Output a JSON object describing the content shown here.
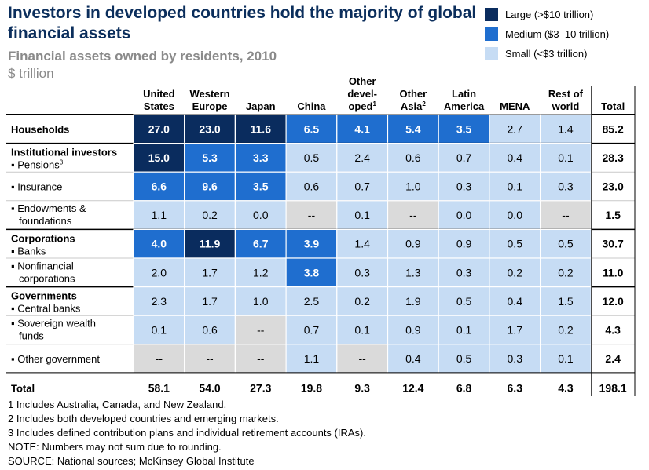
{
  "title": "Investors in developed countries hold the majority of global financial assets",
  "subtitle": "Financial assets owned by residents, 2010",
  "unit": "$ trillion",
  "legend": [
    {
      "label": "Large (>$10 trillion)",
      "color": "#0a2c5e"
    },
    {
      "label": "Medium ($3–10 trillion)",
      "color": "#1f6ecf"
    },
    {
      "label": "Small (<$3 trillion)",
      "color": "#c6dcf4"
    }
  ],
  "colors": {
    "large": "#0a2c5e",
    "medium": "#1f6ecf",
    "small": "#c6dcf4",
    "na": "#dadada"
  },
  "chart_data": {
    "type": "table",
    "columns": [
      {
        "lines": [
          "United",
          "States"
        ],
        "sup": ""
      },
      {
        "lines": [
          "Western",
          "Europe"
        ],
        "sup": ""
      },
      {
        "lines": [
          "Japan"
        ],
        "sup": ""
      },
      {
        "lines": [
          "China"
        ],
        "sup": ""
      },
      {
        "lines": [
          "Other",
          "devel-",
          "oped"
        ],
        "sup": "1"
      },
      {
        "lines": [
          "Other",
          "Asia"
        ],
        "sup": "2"
      },
      {
        "lines": [
          "Latin",
          "America"
        ],
        "sup": ""
      },
      {
        "lines": [
          "MENA"
        ],
        "sup": ""
      },
      {
        "lines": [
          "Rest of",
          "world"
        ],
        "sup": ""
      }
    ],
    "total_header": "Total",
    "groups": [
      {
        "label": "Households",
        "rows": [
          {
            "label": "",
            "values": [
              "27.0",
              "23.0",
              "11.6",
              "6.5",
              "4.1",
              "5.4",
              "3.5",
              "2.7",
              "1.4"
            ],
            "total": "85.2"
          }
        ]
      },
      {
        "label": "Institutional investors",
        "rows": [
          {
            "label": "Pensions",
            "sup": "3",
            "values": [
              "15.0",
              "5.3",
              "3.3",
              "0.5",
              "2.4",
              "0.6",
              "0.7",
              "0.4",
              "0.1"
            ],
            "total": "28.3"
          },
          {
            "label": "Insurance",
            "values": [
              "6.6",
              "9.6",
              "3.5",
              "0.6",
              "0.7",
              "1.0",
              "0.3",
              "0.1",
              "0.3"
            ],
            "total": "23.0"
          },
          {
            "label": "Endowments & foundations",
            "values": [
              "1.1",
              "0.2",
              "0.0",
              "--",
              "0.1",
              "--",
              "0.0",
              "0.0",
              "--"
            ],
            "total": "1.5"
          }
        ]
      },
      {
        "label": "Corporations",
        "rows": [
          {
            "label": "Banks",
            "values": [
              "4.0",
              "11.9",
              "6.7",
              "3.9",
              "1.4",
              "0.9",
              "0.9",
              "0.5",
              "0.5"
            ],
            "total": "30.7"
          },
          {
            "label": "Nonfinancial corporations",
            "values": [
              "2.0",
              "1.7",
              "1.2",
              "3.8",
              "0.3",
              "1.3",
              "0.3",
              "0.2",
              "0.2"
            ],
            "total": "11.0"
          }
        ]
      },
      {
        "label": "Governments",
        "rows": [
          {
            "label": "Central banks",
            "values": [
              "2.3",
              "1.7",
              "1.0",
              "2.5",
              "0.2",
              "1.9",
              "0.5",
              "0.4",
              "1.5"
            ],
            "total": "12.0"
          },
          {
            "label": "Sovereign wealth funds",
            "values": [
              "0.1",
              "0.6",
              "--",
              "0.7",
              "0.1",
              "0.9",
              "0.1",
              "1.7",
              "0.2"
            ],
            "total": "4.3"
          },
          {
            "label": "Other government",
            "values": [
              "--",
              "--",
              "--",
              "1.1",
              "--",
              "0.4",
              "0.5",
              "0.3",
              "0.1"
            ],
            "total": "2.4"
          }
        ]
      }
    ],
    "total_row": {
      "label": "Total",
      "values": [
        "58.1",
        "54.0",
        "27.3",
        "19.8",
        "9.3",
        "12.4",
        "6.8",
        "6.3",
        "4.3"
      ],
      "total": "198.1"
    }
  },
  "footnotes": [
    "1  Includes Australia, Canada, and New Zealand.",
    "2  Includes both developed countries and emerging markets.",
    "3  Includes defined contribution plans and individual retirement accounts (IRAs).",
    "NOTE: Numbers may not sum due to rounding.",
    "SOURCE: National sources; McKinsey Global Institute"
  ]
}
